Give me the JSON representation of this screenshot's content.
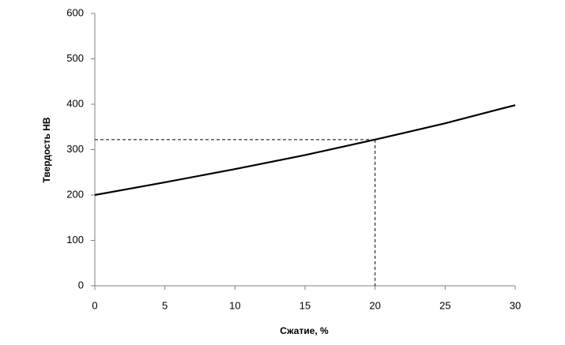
{
  "chart_data": {
    "type": "line",
    "x_label": "Сжатие, %",
    "y_label": "Твердость HB",
    "x": [
      0,
      5,
      10,
      15,
      20,
      25,
      30
    ],
    "values": [
      200,
      228,
      257,
      288,
      322,
      358,
      398
    ],
    "color": "#000000",
    "reference_point": {
      "x": 20,
      "y": 322
    },
    "xlim": [
      0,
      30
    ],
    "xticks": [
      0,
      5,
      10,
      15,
      20,
      25,
      30
    ],
    "ylim": [
      0,
      600
    ],
    "yticks": [
      0,
      100,
      200,
      300,
      400,
      500,
      600
    ],
    "grid": false
  }
}
